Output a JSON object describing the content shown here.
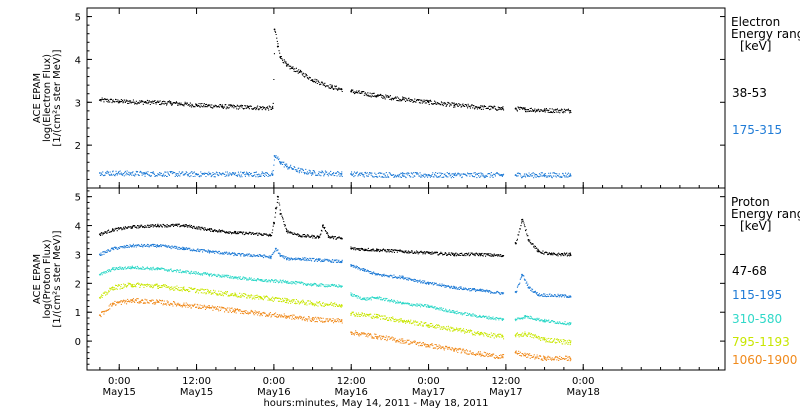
{
  "chart_data": [
    {
      "type": "scatter",
      "panel": "electron",
      "ylabel_lines": [
        "ACE EPAM",
        "log(Electron Flux)",
        "[1/(cm²s ster MeV)]"
      ],
      "legend_title_lines": [
        "Electron",
        "Energy ranges",
        "[keV]"
      ],
      "y_ticks": [
        "2",
        "3",
        "4",
        "5"
      ],
      "ylim": [
        1.0,
        5.2
      ],
      "series": [
        {
          "name": "38-53",
          "color": "#000000",
          "x": [
            -3,
            0,
            4,
            8,
            12,
            16,
            20,
            23.8,
            24.1,
            24.6,
            25,
            26,
            28,
            30,
            33,
            34.5,
            36,
            40,
            44,
            48,
            52,
            56,
            59.5,
            61.5,
            63,
            66,
            70
          ],
          "y": [
            3.05,
            3.02,
            3.0,
            2.98,
            2.93,
            2.9,
            2.88,
            2.86,
            4.7,
            4.3,
            4.05,
            3.85,
            3.7,
            3.52,
            3.35,
            3.3,
            3.25,
            3.15,
            3.07,
            3.0,
            2.93,
            2.88,
            2.85,
            2.85,
            2.83,
            2.81,
            2.8
          ]
        },
        {
          "name": "175-315",
          "color": "#1f7bd6",
          "x": [
            -3,
            4,
            12,
            20,
            23.8,
            24.1,
            25,
            26,
            28,
            30,
            34.5,
            36,
            44,
            52,
            59.5,
            61.5,
            66,
            70
          ],
          "y": [
            1.35,
            1.33,
            1.32,
            1.32,
            1.32,
            1.75,
            1.6,
            1.5,
            1.4,
            1.35,
            1.33,
            1.32,
            1.3,
            1.3,
            1.3,
            1.3,
            1.3,
            1.3
          ]
        }
      ]
    },
    {
      "type": "scatter",
      "panel": "proton",
      "ylabel_lines": [
        "ACE EPAM",
        "log(Proton Flux)",
        "[1/(cm²s ster MeV)]"
      ],
      "legend_title_lines": [
        "Proton",
        "Energy ranges",
        "[keV]"
      ],
      "y_ticks": [
        "0",
        "1",
        "2",
        "3",
        "4",
        "5"
      ],
      "ylim": [
        -1.0,
        5.3
      ],
      "series": [
        {
          "name": "47-68",
          "color": "#000000",
          "x": [
            -3,
            -1,
            2,
            6,
            10,
            14,
            18,
            22,
            23.5,
            24,
            24.3,
            24.6,
            25,
            26,
            28,
            31,
            31.6,
            32.5,
            34.5,
            36,
            40,
            44,
            48,
            52,
            56,
            59.5,
            61.5,
            62.5,
            63.5,
            65,
            67,
            70
          ],
          "y": [
            3.7,
            3.85,
            3.95,
            4.0,
            4.0,
            3.85,
            3.75,
            3.7,
            3.65,
            4.1,
            4.6,
            5.0,
            4.4,
            3.8,
            3.65,
            3.6,
            4.0,
            3.6,
            3.55,
            3.2,
            3.15,
            3.1,
            3.05,
            3.0,
            3.0,
            2.95,
            3.4,
            4.2,
            3.5,
            3.1,
            3.0,
            3.0
          ]
        },
        {
          "name": "115-195",
          "color": "#1f7bd6",
          "x": [
            -3,
            -1,
            2,
            6,
            10,
            14,
            18,
            22,
            23.5,
            24.3,
            25,
            26,
            28,
            31,
            34.5,
            36,
            38,
            40,
            44,
            48,
            52,
            56,
            59.5,
            61.5,
            62.5,
            63.5,
            65,
            70
          ],
          "y": [
            3.0,
            3.2,
            3.3,
            3.3,
            3.2,
            3.1,
            3.0,
            2.95,
            2.9,
            3.2,
            2.95,
            2.85,
            2.85,
            2.8,
            2.75,
            2.6,
            2.45,
            2.3,
            2.2,
            2.0,
            1.85,
            1.75,
            1.65,
            1.7,
            2.3,
            1.85,
            1.6,
            1.55
          ]
        },
        {
          "name": "310-580",
          "color": "#2fd8c8",
          "x": [
            -3,
            -1,
            2,
            6,
            10,
            14,
            18,
            22,
            26,
            30,
            34.5,
            36,
            38,
            40,
            44,
            48,
            52,
            56,
            59.5,
            61.5,
            63,
            66,
            70
          ],
          "y": [
            2.3,
            2.5,
            2.55,
            2.5,
            2.4,
            2.3,
            2.2,
            2.1,
            2.05,
            1.95,
            1.9,
            1.6,
            1.45,
            1.5,
            1.3,
            1.2,
            1.0,
            0.85,
            0.75,
            0.75,
            0.85,
            0.7,
            0.6
          ]
        },
        {
          "name": "795-1193",
          "color": "#c8e600",
          "x": [
            -3,
            -1,
            2,
            6,
            10,
            14,
            18,
            22,
            26,
            30,
            34.5,
            36,
            40,
            44,
            48,
            52,
            56,
            59.5,
            61.5,
            63,
            66,
            70
          ],
          "y": [
            1.5,
            1.85,
            1.95,
            1.9,
            1.8,
            1.7,
            1.6,
            1.5,
            1.4,
            1.3,
            1.25,
            0.95,
            0.85,
            0.7,
            0.55,
            0.4,
            0.25,
            0.15,
            0.2,
            0.25,
            0.05,
            -0.05
          ]
        },
        {
          "name": "1060-1900",
          "color": "#f08a1c",
          "x": [
            -3,
            -1,
            2,
            6,
            10,
            14,
            18,
            22,
            26,
            30,
            34.5,
            36,
            40,
            44,
            48,
            52,
            56,
            59.5,
            61.5,
            63,
            66,
            70
          ],
          "y": [
            0.9,
            1.3,
            1.4,
            1.35,
            1.25,
            1.15,
            1.05,
            0.95,
            0.85,
            0.75,
            0.7,
            0.3,
            0.15,
            0.0,
            -0.15,
            -0.3,
            -0.45,
            -0.55,
            -0.4,
            -0.5,
            -0.6,
            -0.6
          ]
        }
      ]
    }
  ],
  "x_axis": {
    "xlim_hours": [
      -5,
      94
    ],
    "ticks": [
      {
        "hour": 0,
        "time": "0:00",
        "date": "May15"
      },
      {
        "hour": 12,
        "time": "12:00",
        "date": "May15"
      },
      {
        "hour": 24,
        "time": "0:00",
        "date": "May16"
      },
      {
        "hour": 36,
        "time": "12:00",
        "date": "May16"
      },
      {
        "hour": 48,
        "time": "0:00",
        "date": "May17"
      },
      {
        "hour": 60,
        "time": "12:00",
        "date": "May17"
      },
      {
        "hour": 72,
        "time": "0:00",
        "date": "May18"
      }
    ],
    "label": "hours:minutes, May 14, 2011 - May 18, 2011"
  }
}
